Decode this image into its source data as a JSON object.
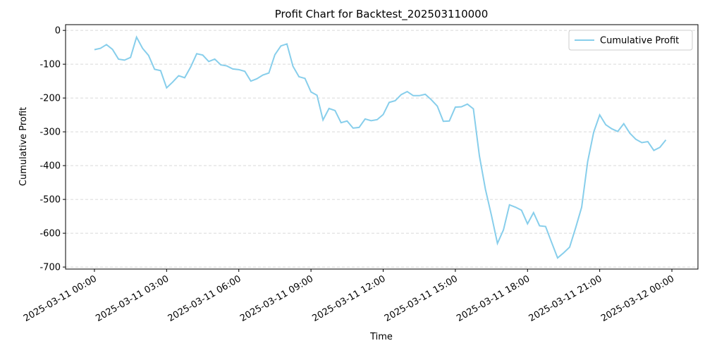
{
  "chart_data": {
    "type": "line",
    "title": "Profit Chart for Backtest_202503110000",
    "xlabel": "Time",
    "ylabel": "Cumulative Profit",
    "x": [
      "2025-03-11 00:00",
      "2025-03-11 00:15",
      "2025-03-11 00:30",
      "2025-03-11 00:45",
      "2025-03-11 01:00",
      "2025-03-11 01:15",
      "2025-03-11 01:30",
      "2025-03-11 01:45",
      "2025-03-11 02:00",
      "2025-03-11 02:15",
      "2025-03-11 02:30",
      "2025-03-11 02:45",
      "2025-03-11 03:00",
      "2025-03-11 03:15",
      "2025-03-11 03:30",
      "2025-03-11 03:45",
      "2025-03-11 04:00",
      "2025-03-11 04:15",
      "2025-03-11 04:30",
      "2025-03-11 04:45",
      "2025-03-11 05:00",
      "2025-03-11 05:15",
      "2025-03-11 05:30",
      "2025-03-11 05:45",
      "2025-03-11 06:00",
      "2025-03-11 06:15",
      "2025-03-11 06:30",
      "2025-03-11 06:45",
      "2025-03-11 07:00",
      "2025-03-11 07:15",
      "2025-03-11 07:30",
      "2025-03-11 07:45",
      "2025-03-11 08:00",
      "2025-03-11 08:15",
      "2025-03-11 08:30",
      "2025-03-11 08:45",
      "2025-03-11 09:00",
      "2025-03-11 09:15",
      "2025-03-11 09:30",
      "2025-03-11 09:45",
      "2025-03-11 10:00",
      "2025-03-11 10:15",
      "2025-03-11 10:30",
      "2025-03-11 10:45",
      "2025-03-11 11:00",
      "2025-03-11 11:15",
      "2025-03-11 11:30",
      "2025-03-11 11:45",
      "2025-03-11 12:00",
      "2025-03-11 12:15",
      "2025-03-11 12:30",
      "2025-03-11 12:45",
      "2025-03-11 13:00",
      "2025-03-11 13:15",
      "2025-03-11 13:30",
      "2025-03-11 13:45",
      "2025-03-11 14:00",
      "2025-03-11 14:15",
      "2025-03-11 14:30",
      "2025-03-11 14:45",
      "2025-03-11 15:00",
      "2025-03-11 15:15",
      "2025-03-11 15:30",
      "2025-03-11 15:45",
      "2025-03-11 16:00",
      "2025-03-11 16:15",
      "2025-03-11 16:30",
      "2025-03-11 16:45",
      "2025-03-11 17:00",
      "2025-03-11 17:15",
      "2025-03-11 17:30",
      "2025-03-11 17:45",
      "2025-03-11 18:00",
      "2025-03-11 18:15",
      "2025-03-11 18:30",
      "2025-03-11 18:45",
      "2025-03-11 19:00",
      "2025-03-11 19:15",
      "2025-03-11 19:30",
      "2025-03-11 19:45",
      "2025-03-11 20:00",
      "2025-03-11 20:15",
      "2025-03-11 20:30",
      "2025-03-11 20:45",
      "2025-03-11 21:00",
      "2025-03-11 21:15",
      "2025-03-11 21:30",
      "2025-03-11 21:45",
      "2025-03-11 22:00",
      "2025-03-11 22:15",
      "2025-03-11 22:30",
      "2025-03-11 22:45",
      "2025-03-11 23:00",
      "2025-03-11 23:15",
      "2025-03-11 23:30",
      "2025-03-11 23:45"
    ],
    "series": [
      {
        "name": "Cumulative Profit",
        "color": "#87ceeb",
        "values": [
          -57,
          -53,
          -42,
          -56,
          -85,
          -88,
          -80,
          -20,
          -53,
          -74,
          -115,
          -119,
          -170,
          -153,
          -134,
          -140,
          -108,
          -69,
          -73,
          -92,
          -85,
          -102,
          -105,
          -114,
          -116,
          -121,
          -150,
          -143,
          -132,
          -126,
          -72,
          -46,
          -40,
          -106,
          -137,
          -142,
          -182,
          -192,
          -265,
          -231,
          -237,
          -273,
          -268,
          -289,
          -287,
          -262,
          -267,
          -264,
          -249,
          -213,
          -208,
          -190,
          -181,
          -193,
          -193,
          -189,
          -205,
          -224,
          -269,
          -268,
          -227,
          -226,
          -218,
          -232,
          -371,
          -470,
          -547,
          -630,
          -590,
          -516,
          -523,
          -532,
          -572,
          -539,
          -578,
          -580,
          -627,
          -673,
          -658,
          -641,
          -584,
          -523,
          -388,
          -301,
          -250,
          -279,
          -291,
          -299,
          -276,
          -304,
          -322,
          -332,
          -329,
          -355,
          -346,
          -324
        ]
      }
    ],
    "xlim": [
      "2025-03-10 22:48",
      "2025-03-12 01:05"
    ],
    "xticks": [
      "2025-03-11 00:00",
      "2025-03-11 03:00",
      "2025-03-11 06:00",
      "2025-03-11 09:00",
      "2025-03-11 12:00",
      "2025-03-11 15:00",
      "2025-03-11 18:00",
      "2025-03-11 21:00",
      "2025-03-12 00:00"
    ],
    "ylim": [
      -706,
      17
    ],
    "yticks": [
      0,
      -100,
      -200,
      -300,
      -400,
      -500,
      -600,
      -700
    ],
    "grid": true,
    "legend": "upper right"
  }
}
